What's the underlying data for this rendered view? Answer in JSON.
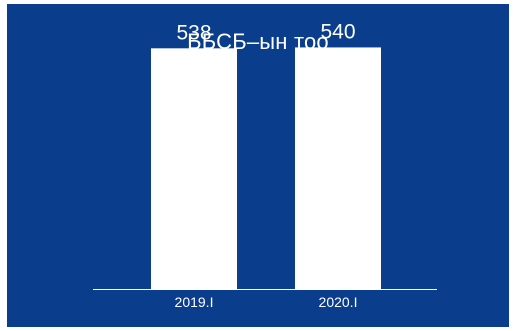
{
  "chart_data": {
    "type": "bar",
    "title": "ББСБ–ын тоо",
    "categories": [
      "2019.I",
      "2020.I"
    ],
    "values": [
      538,
      540
    ],
    "data_labels": [
      "538",
      "540"
    ],
    "ylim": [
      0,
      570
    ],
    "xlabel": "",
    "ylabel": "",
    "grid": false,
    "legend": "none",
    "colors": {
      "background": "#0a3d8c",
      "bar": "#ffffff",
      "text": "#ffffff",
      "axis": "#ffffff"
    }
  }
}
